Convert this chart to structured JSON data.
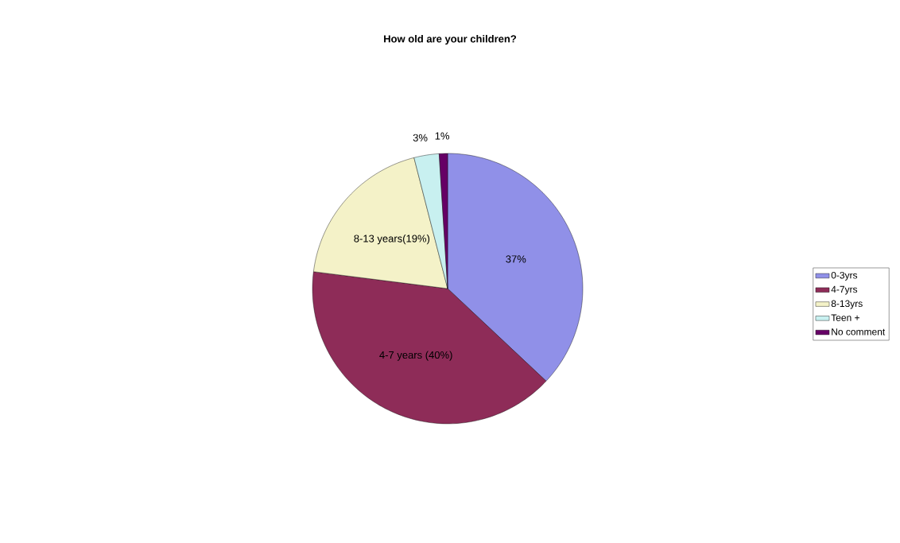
{
  "chart_data": {
    "type": "pie",
    "title": "How old are your children?",
    "categories": [
      "0-3yrs",
      "4-7yrs",
      "8-13yrs",
      "Teen +",
      "No comment"
    ],
    "values": [
      37,
      40,
      19,
      3,
      1
    ],
    "colors": [
      "#9090e8",
      "#8e2c58",
      "#f4f2c8",
      "#c8f0f0",
      "#660066"
    ],
    "value_labels": [
      "37%",
      "4-7 years (40%)",
      "8-13 years(19%)",
      "3%",
      "1%"
    ],
    "legend": "right"
  }
}
